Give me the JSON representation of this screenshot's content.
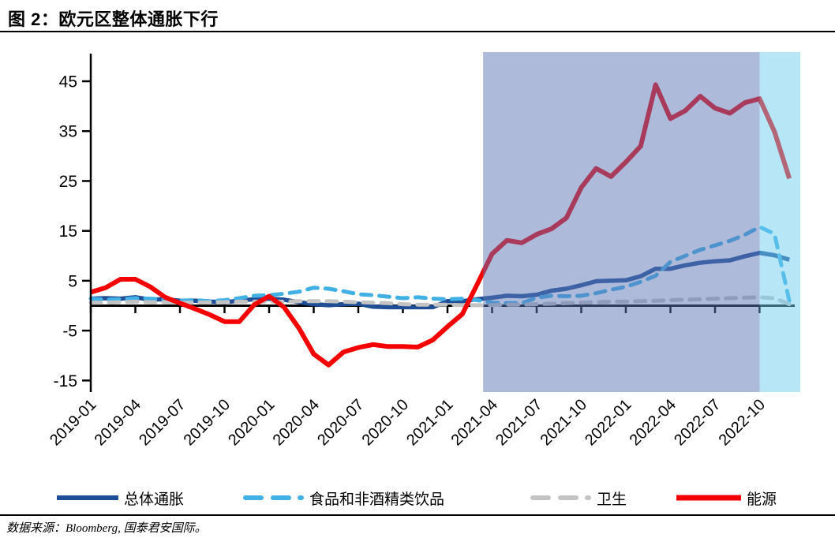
{
  "title": "图 2：欧元区整体通胀下行",
  "source_note": "数据来源：Bloomberg, 国泰君安国际。",
  "chart_data": {
    "type": "line",
    "title": "欧元区整体通胀下行",
    "x_unit": "month",
    "categories": [
      "2019-01",
      "2019-02",
      "2019-03",
      "2019-04",
      "2019-05",
      "2019-06",
      "2019-07",
      "2019-08",
      "2019-09",
      "2019-10",
      "2019-11",
      "2019-12",
      "2020-01",
      "2020-02",
      "2020-03",
      "2020-04",
      "2020-05",
      "2020-06",
      "2020-07",
      "2020-08",
      "2020-09",
      "2020-10",
      "2020-11",
      "2020-12",
      "2021-01",
      "2021-02",
      "2021-03",
      "2021-04",
      "2021-05",
      "2021-06",
      "2021-07",
      "2021-08",
      "2021-09",
      "2021-10",
      "2021-11",
      "2021-12",
      "2022-01",
      "2022-02",
      "2022-03",
      "2022-04",
      "2022-05",
      "2022-06",
      "2022-07",
      "2022-08",
      "2022-09",
      "2022-10",
      "2022-11",
      "2022-12"
    ],
    "x_tick_labels": [
      "2019-01",
      "2019-04",
      "2019-07",
      "2019-10",
      "2020-01",
      "2020-04",
      "2020-07",
      "2020-10",
      "2021-01",
      "2021-04",
      "2021-07",
      "2021-10",
      "2022-01",
      "2022-04",
      "2022-07",
      "2022-10"
    ],
    "yticks": [
      45,
      35,
      25,
      15,
      5,
      -5,
      -15
    ],
    "ylim": [
      -15.8,
      50.8
    ],
    "grid": false,
    "legend_position": "bottom",
    "axis_color": "#000000",
    "zero_line_color": "#000000",
    "series": [
      {
        "key": "overall-inflation",
        "name": "总体通胀",
        "color": "#1F4E96",
        "style": "solid",
        "width": 5.5,
        "values": [
          1.4,
          1.5,
          1.4,
          1.7,
          1.2,
          1.3,
          1.0,
          1.0,
          0.8,
          0.7,
          1.0,
          1.3,
          1.4,
          1.2,
          0.7,
          0.3,
          0.1,
          0.3,
          0.4,
          -0.2,
          -0.3,
          -0.3,
          -0.3,
          -0.3,
          0.9,
          0.9,
          1.3,
          1.6,
          2.0,
          1.9,
          2.2,
          3.0,
          3.4,
          4.1,
          4.9,
          5.0,
          5.1,
          5.9,
          7.4,
          7.4,
          8.1,
          8.6,
          8.9,
          9.1,
          9.9,
          10.6,
          10.1,
          9.2
        ]
      },
      {
        "key": "food-nonalcoholic-beverages",
        "name": "食品和非酒精类饮品",
        "color": "#41B0E4",
        "style": "dashed",
        "width": 5,
        "values": [
          1.4,
          1.2,
          1.3,
          1.5,
          1.4,
          1.2,
          1.0,
          1.1,
          0.9,
          1.1,
          1.5,
          2.0,
          2.1,
          2.4,
          2.8,
          3.6,
          3.4,
          2.9,
          2.3,
          2.1,
          1.8,
          1.5,
          1.7,
          1.4,
          1.3,
          1.4,
          1.1,
          0.6,
          0.5,
          0.5,
          1.6,
          2.0,
          1.9,
          2.0,
          2.5,
          3.2,
          3.8,
          4.8,
          6.0,
          8.8,
          10.0,
          11.2,
          12.1,
          13.0,
          14.2,
          15.8,
          14.4,
          0.9
        ]
      },
      {
        "key": "health",
        "name": "卫生",
        "color": "#C3C3C3",
        "style": "dashed",
        "width": 5,
        "values": [
          0.6,
          0.6,
          0.7,
          0.8,
          0.7,
          0.7,
          0.6,
          0.6,
          0.7,
          0.7,
          0.8,
          0.8,
          0.8,
          0.8,
          0.9,
          0.9,
          0.9,
          0.8,
          0.7,
          0.6,
          0.5,
          0.3,
          0.2,
          0.2,
          0.2,
          0.1,
          0.1,
          0.1,
          0.2,
          0.2,
          0.3,
          0.4,
          0.5,
          0.6,
          0.7,
          0.8,
          0.8,
          0.9,
          1.0,
          1.1,
          1.2,
          1.3,
          1.4,
          1.5,
          1.6,
          1.7,
          1.5,
          0.3
        ]
      },
      {
        "key": "energy",
        "name": "能源",
        "color": "#F40000",
        "style": "solid",
        "width": 6,
        "values": [
          2.7,
          3.6,
          5.3,
          5.3,
          3.8,
          1.7,
          0.5,
          -0.6,
          -1.8,
          -3.2,
          -3.2,
          0.2,
          1.9,
          -0.3,
          -4.5,
          -9.7,
          -11.9,
          -9.3,
          -8.4,
          -7.8,
          -8.2,
          -8.2,
          -8.3,
          -6.9,
          -4.2,
          -1.7,
          4.3,
          10.4,
          13.1,
          12.6,
          14.3,
          15.4,
          17.6,
          23.7,
          27.5,
          25.9,
          28.8,
          32.0,
          44.3,
          37.5,
          39.1,
          42.0,
          39.6,
          38.6,
          40.7,
          41.5,
          34.9,
          25.5
        ]
      }
    ],
    "highlight_regions": [
      {
        "start": "2021-03",
        "end": "2022-10",
        "color": "#5B76B5",
        "opacity": 0.5,
        "extend_to_edge": false
      },
      {
        "start": "2022-10",
        "end": "2022-12",
        "color": "#6FCDEF",
        "opacity": 0.5,
        "extend_to_edge": true
      }
    ]
  }
}
